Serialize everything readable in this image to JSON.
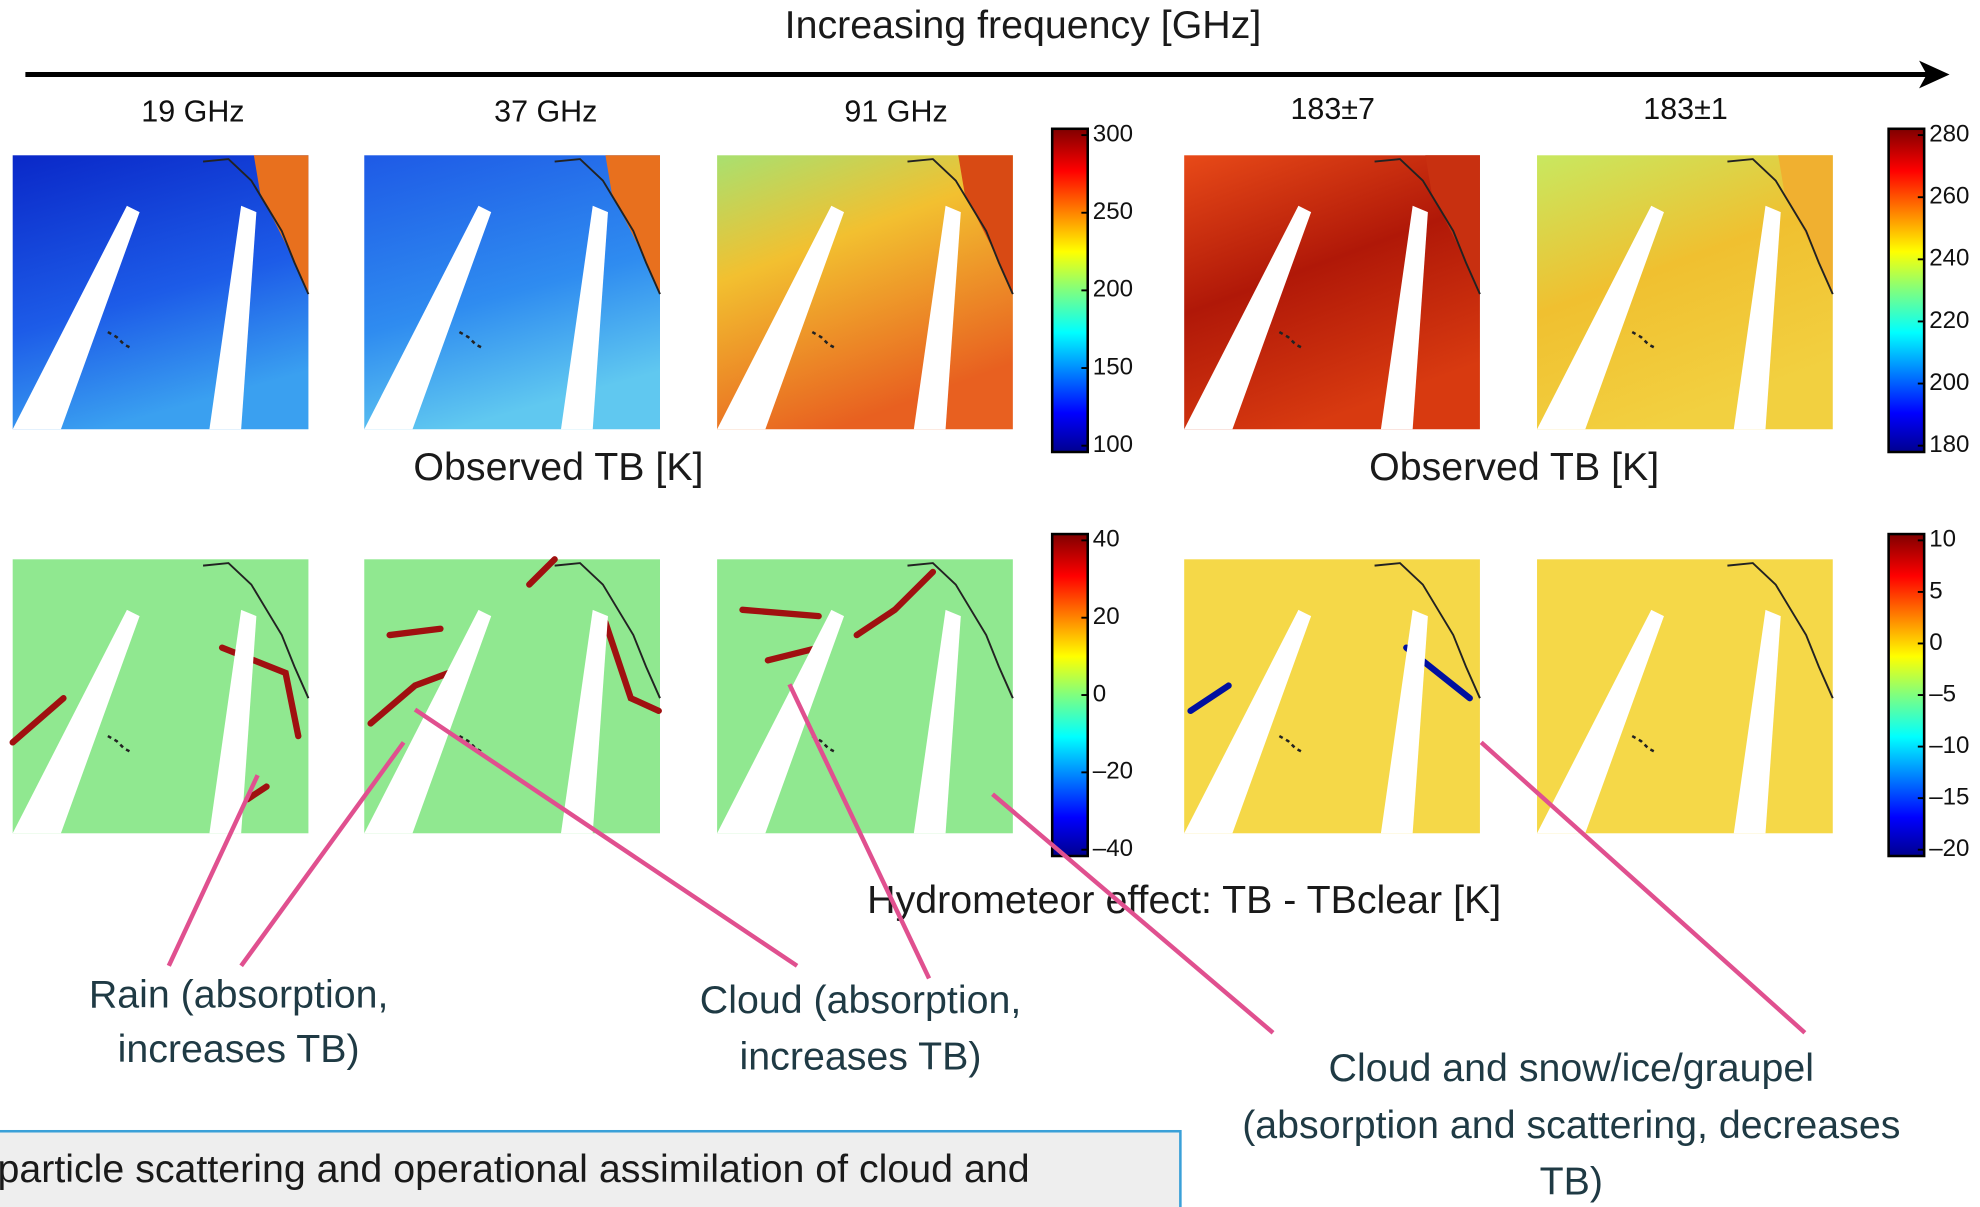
{
  "header": {
    "title": "Increasing frequency [GHz]"
  },
  "panels": [
    "19 GHz",
    "37 GHz",
    "91 GHz",
    "183±7",
    "183±1"
  ],
  "colorbars": [
    {
      "ticks": [
        "300",
        "250",
        "200",
        "150",
        "100"
      ]
    },
    {
      "ticks": [
        "280",
        "260",
        "240",
        "220",
        "200",
        "180"
      ]
    },
    {
      "ticks": [
        "40",
        "20",
        "0",
        "–20",
        "–40"
      ]
    },
    {
      "ticks": [
        "10",
        "5",
        "0",
        "–5",
        "–10",
        "–15",
        "–20"
      ]
    }
  ],
  "row_labels": [
    "Observed TB [K]",
    "Observed TB [K]",
    "Hydrometeor effect: TB - TBclear [K]"
  ],
  "annotations": [
    [
      "Rain (absorption,",
      "increases TB)"
    ],
    [
      "Cloud (absorption,",
      "increases TB)"
    ],
    [
      "Cloud and snow/ice/graupel",
      "(absorption and scattering, decreases",
      "TB)"
    ]
  ],
  "footer": {
    "text": "particle scattering and operational assimilation of cloud and"
  }
}
